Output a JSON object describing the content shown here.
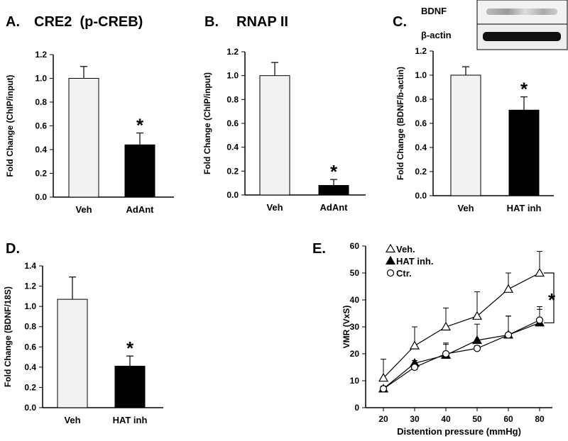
{
  "chart_data": [
    {
      "type": "bar",
      "panel_label": "A.",
      "title": "CRE2  (p-CREB)",
      "ylabel": "Fold Change (ChIP/input)",
      "categories": [
        "Veh",
        "AdAnt"
      ],
      "values": [
        1.0,
        0.44
      ],
      "errors": [
        0.1,
        0.1
      ],
      "colors": [
        "#f2f2f2",
        "#000000"
      ],
      "ylim": [
        0,
        1.2
      ],
      "yticks": [
        {
          "value": 0,
          "label": "0.0"
        },
        {
          "value": 0.2,
          "label": "0.2"
        },
        {
          "value": 0.4,
          "label": "0.4"
        },
        {
          "value": 0.6,
          "label": "0.6"
        },
        {
          "value": 0.8,
          "label": "0.8"
        },
        {
          "value": 1.0,
          "label": "1.0"
        },
        {
          "value": 1.2,
          "label": "1.2"
        }
      ],
      "annotation": "*"
    },
    {
      "type": "bar",
      "panel_label": "B.",
      "title": "RNAP II",
      "ylabel": "Fold Change (ChIP/input)",
      "categories": [
        "Veh",
        "AdAnt"
      ],
      "values": [
        1.0,
        0.08
      ],
      "errors": [
        0.11,
        0.05
      ],
      "colors": [
        "#f2f2f2",
        "#000000"
      ],
      "ylim": [
        0,
        1.2
      ],
      "yticks": [
        {
          "value": 0,
          "label": "0.0"
        },
        {
          "value": 0.2,
          "label": "0.2"
        },
        {
          "value": 0.4,
          "label": "0.4"
        },
        {
          "value": 0.6,
          "label": "0.6"
        },
        {
          "value": 0.8,
          "label": "0.8"
        },
        {
          "value": 1.0,
          "label": "1.0"
        },
        {
          "value": 1.2,
          "label": "1.2"
        }
      ],
      "annotation": "*"
    },
    {
      "type": "bar",
      "panel_label": "C.",
      "blot_labels": [
        "BDNF",
        "β-actin"
      ],
      "ylabel": "Fold Change (BDNF/b-actin)",
      "categories": [
        "Veh",
        "HAT inh"
      ],
      "values": [
        1.0,
        0.71
      ],
      "errors": [
        0.07,
        0.11
      ],
      "colors": [
        "#f2f2f2",
        "#000000"
      ],
      "ylim": [
        0,
        1.2
      ],
      "yticks": [
        {
          "value": 0,
          "label": "0.0"
        },
        {
          "value": 0.2,
          "label": "0.2"
        },
        {
          "value": 0.4,
          "label": "0.4"
        },
        {
          "value": 0.6,
          "label": "0.6"
        },
        {
          "value": 0.8,
          "label": "0.8"
        },
        {
          "value": 1.0,
          "label": "1.0"
        },
        {
          "value": 1.2,
          "label": "1.2"
        }
      ],
      "annotation": "*"
    },
    {
      "type": "bar",
      "panel_label": "D.",
      "ylabel": "Fold Change (BDNF/18S)",
      "categories": [
        "Veh",
        "HAT inh"
      ],
      "values": [
        1.07,
        0.41
      ],
      "errors": [
        0.22,
        0.1
      ],
      "colors": [
        "#f2f2f2",
        "#000000"
      ],
      "ylim": [
        0,
        1.4
      ],
      "yticks": [
        {
          "value": 0,
          "label": "0.0"
        },
        {
          "value": 0.2,
          "label": "0.2"
        },
        {
          "value": 0.4,
          "label": "0.4"
        },
        {
          "value": 0.6,
          "label": "0.6"
        },
        {
          "value": 0.8,
          "label": "0.8"
        },
        {
          "value": 1.0,
          "label": "1.0"
        },
        {
          "value": 1.2,
          "label": "1.2"
        },
        {
          "value": 1.4,
          "label": "1.4"
        }
      ],
      "annotation": "*"
    },
    {
      "type": "line",
      "panel_label": "E.",
      "xlabel": "Distention pressure (mmHg)",
      "ylabel": "VMR (VxS)",
      "categories": [
        "20",
        "30",
        "40",
        "50",
        "60",
        "80"
      ],
      "series": [
        {
          "name": "Veh.",
          "marker": "open-triangle",
          "values": [
            11,
            23,
            30,
            34,
            44,
            50
          ],
          "errors": [
            7,
            7,
            7,
            9,
            6,
            8
          ]
        },
        {
          "name": "HAT inh.",
          "marker": "filled-triangle",
          "values": [
            7,
            16.5,
            19.5,
            25,
            27,
            31.5
          ],
          "errors": [
            1,
            1,
            4,
            6,
            7,
            5
          ]
        },
        {
          "name": "Ctr.",
          "marker": "open-circle",
          "values": [
            7,
            15,
            20,
            22,
            27,
            32.5
          ],
          "errors": [
            1,
            1,
            4,
            1,
            7,
            5
          ]
        }
      ],
      "ylim": [
        0,
        60
      ],
      "yticks": [
        0,
        10,
        20,
        30,
        40,
        50,
        60
      ],
      "legend": "upper left",
      "annotation": "*"
    }
  ]
}
